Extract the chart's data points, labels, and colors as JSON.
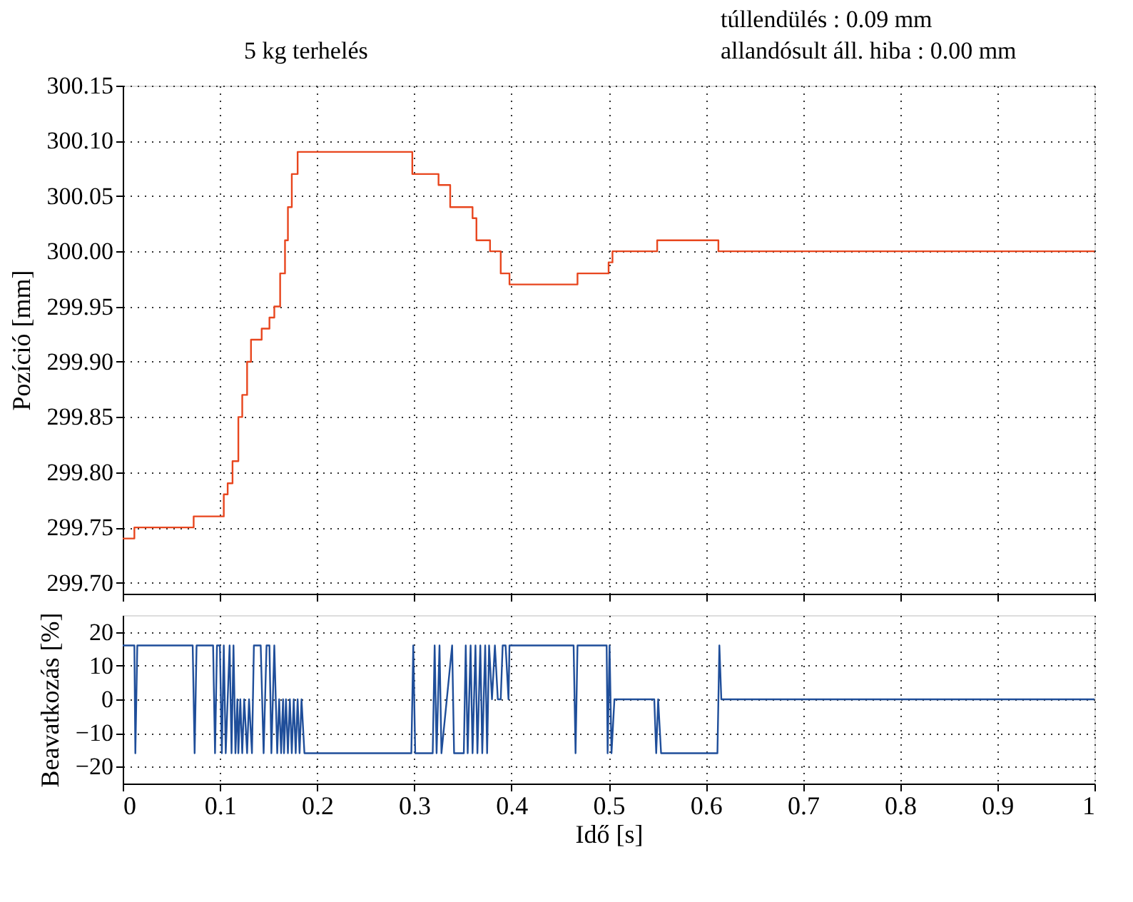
{
  "chart_data": [
    {
      "type": "step",
      "title": "5 kg terhelés",
      "ylabel": "Pozíció  [mm]",
      "annotations": [
        "túllendülés : 0.09 mm",
        "allandósult áll. hiba : 0.00 mm"
      ],
      "x": [
        0,
        0.012,
        0.073,
        0.104,
        0.108,
        0.113,
        0.119,
        0.123,
        0.128,
        0.132,
        0.143,
        0.151,
        0.156,
        0.162,
        0.167,
        0.17,
        0.174,
        0.18,
        0.298,
        0.325,
        0.337,
        0.36,
        0.364,
        0.378,
        0.389,
        0.398,
        0.468,
        0.5,
        0.504,
        0.55,
        0.613,
        1
      ],
      "series": [
        {
          "color": "#e8461e",
          "values": [
            299.74,
            299.75,
            299.76,
            299.78,
            299.79,
            299.81,
            299.85,
            299.87,
            299.9,
            299.92,
            299.93,
            299.94,
            299.95,
            299.98,
            300.01,
            300.04,
            300.07,
            300.09,
            300.07,
            300.06,
            300.04,
            300.03,
            300.01,
            300.0,
            299.98,
            299.97,
            299.98,
            299.99,
            300.0,
            300.01,
            300.0,
            300.0
          ]
        }
      ],
      "xlim": [
        0,
        1
      ],
      "xticks": [
        0,
        0.1,
        0.2,
        0.3,
        0.4,
        0.5,
        0.6,
        0.7,
        0.8,
        0.9,
        1
      ],
      "ylim": [
        299.69,
        300.15
      ],
      "yticks": [
        {
          "value": 299.7,
          "label": "299.70"
        },
        299.75,
        {
          "value": 299.8,
          "label": "299.80"
        },
        299.85,
        {
          "value": 299.9,
          "label": "299.90"
        },
        299.95,
        {
          "value": 300,
          "label": "300.00"
        },
        300.05,
        {
          "value": 300.1,
          "label": "300.10"
        },
        300.15
      ],
      "grid": true,
      "tick_labels": "y"
    },
    {
      "type": "line",
      "xlabel": "Idő  [s]",
      "ylabel": "Beavatkozás [%]",
      "x": [
        0,
        0.012,
        0.013,
        0.015,
        0.072,
        0.074,
        0.076,
        0.093,
        0.095,
        0.097,
        0.1,
        0.102,
        0.104,
        0.106,
        0.108,
        0.11,
        0.112,
        0.114,
        0.116,
        0.118,
        0.119,
        0.121,
        0.123,
        0.125,
        0.128,
        0.13,
        0.133,
        0.135,
        0.142,
        0.145,
        0.148,
        0.151,
        0.153,
        0.156,
        0.159,
        0.161,
        0.163,
        0.165,
        0.166,
        0.168,
        0.17,
        0.172,
        0.174,
        0.176,
        0.178,
        0.18,
        0.182,
        0.184,
        0.187,
        0.297,
        0.299,
        0.301,
        0.319,
        0.321,
        0.323,
        0.326,
        0.328,
        0.339,
        0.341,
        0.351,
        0.353,
        0.355,
        0.358,
        0.36,
        0.363,
        0.365,
        0.368,
        0.37,
        0.373,
        0.375,
        0.377,
        0.38,
        0.383,
        0.386,
        0.389,
        0.391,
        0.394,
        0.397,
        0.398,
        0.464,
        0.466,
        0.468,
        0.498,
        0.499,
        0.501,
        0.503,
        0.506,
        0.547,
        0.549,
        0.551,
        0.554,
        0.612,
        0.614,
        0.616,
        1
      ],
      "series": [
        {
          "color": "#1f4e9a",
          "values": [
            16,
            16,
            -16,
            16,
            16,
            -16,
            16,
            16,
            -16,
            16,
            16,
            -16,
            16,
            -16,
            0,
            16,
            -16,
            16,
            -16,
            0,
            -16,
            0,
            -16,
            0,
            -16,
            0,
            -16,
            16,
            16,
            -16,
            16,
            16,
            -16,
            16,
            -16,
            0,
            -16,
            0,
            -16,
            0,
            -16,
            0,
            -16,
            0,
            -16,
            0,
            -16,
            0,
            -16,
            -16,
            16,
            -16,
            -16,
            16,
            -16,
            16,
            -16,
            16,
            -16,
            -16,
            16,
            -16,
            16,
            -16,
            16,
            -16,
            16,
            -16,
            16,
            -16,
            16,
            0,
            16,
            0,
            0,
            16,
            16,
            0,
            16,
            16,
            -16,
            16,
            16,
            -16,
            16,
            -16,
            0,
            0,
            -16,
            0,
            -16,
            -16,
            16,
            0,
            0
          ]
        }
      ],
      "xlim": [
        0,
        1
      ],
      "xticks": [
        0,
        0.1,
        0.2,
        0.3,
        0.4,
        0.5,
        0.6,
        0.7,
        0.8,
        0.9,
        1
      ],
      "ylim": [
        -25,
        25
      ],
      "yticks": [
        -20,
        -10,
        0,
        10,
        20
      ],
      "grid": true
    }
  ]
}
